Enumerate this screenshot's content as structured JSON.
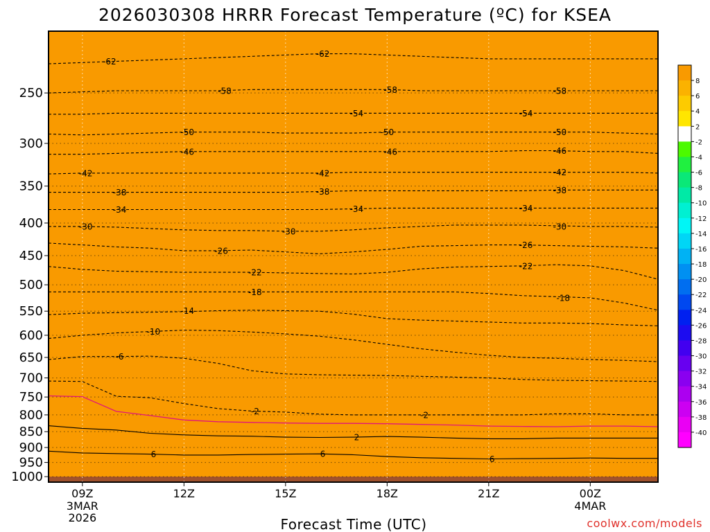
{
  "chart_data": {
    "type": "heatmap",
    "title": "2026030308 HRRR Forecast Temperature (ºC) for KSEA",
    "xlabel": "Forecast Time (UTC)",
    "credit": "coolwx.com/models",
    "x_ticks": [
      {
        "hour": 9,
        "label": "09Z",
        "sublabel": [
          "3MAR",
          "2026"
        ]
      },
      {
        "hour": 12,
        "label": "12Z",
        "sublabel": []
      },
      {
        "hour": 15,
        "label": "15Z",
        "sublabel": []
      },
      {
        "hour": 18,
        "label": "18Z",
        "sublabel": []
      },
      {
        "hour": 21,
        "label": "21Z",
        "sublabel": []
      },
      {
        "hour": 24,
        "label": "00Z",
        "sublabel": [
          "4MAR"
        ]
      }
    ],
    "xlim": [
      8,
      26
    ],
    "ylim": [
      1020,
      200
    ],
    "y_scale": "log",
    "y_ticks": [
      250,
      300,
      350,
      400,
      450,
      500,
      550,
      600,
      650,
      700,
      750,
      800,
      850,
      900,
      950,
      1000
    ],
    "x_hours": [
      8,
      9,
      10,
      11,
      12,
      13,
      14,
      15,
      16,
      17,
      18,
      19,
      20,
      21,
      22,
      23,
      24,
      25,
      26
    ],
    "isotherm_pressures": [
      {
        "t": -62,
        "p": [
          225,
          224,
          223,
          222,
          221,
          220,
          219,
          218,
          217,
          217,
          218,
          219,
          220,
          221,
          221,
          221,
          221,
          221,
          221
        ]
      },
      {
        "t": -58,
        "p": [
          250,
          249,
          248,
          248,
          248,
          248,
          247,
          247,
          247,
          247,
          247,
          248,
          248,
          248,
          248,
          248,
          248,
          248,
          248
        ]
      },
      {
        "t": -54,
        "p": [
          270,
          270,
          269,
          269,
          269,
          269,
          269,
          269,
          269,
          269,
          269,
          269,
          269,
          269,
          269,
          269,
          269,
          269,
          269
        ]
      },
      {
        "t": -50,
        "p": [
          290,
          291,
          290,
          289,
          288,
          288,
          288,
          289,
          289,
          289,
          288,
          288,
          288,
          288,
          288,
          288,
          288,
          289,
          290
        ]
      },
      {
        "t": -46,
        "p": [
          312,
          312,
          311,
          310,
          309,
          309,
          309,
          309,
          309,
          309,
          309,
          309,
          309,
          309,
          308,
          308,
          309,
          309,
          311
        ]
      },
      {
        "t": -42,
        "p": [
          335,
          334,
          334,
          334,
          334,
          334,
          334,
          334,
          334,
          333,
          333,
          333,
          333,
          333,
          333,
          333,
          333,
          333,
          334
        ]
      },
      {
        "t": -38,
        "p": [
          358,
          358,
          358,
          358,
          358,
          358,
          358,
          358,
          357,
          356,
          356,
          356,
          356,
          356,
          356,
          355,
          355,
          355,
          355
        ]
      },
      {
        "t": -34,
        "p": [
          381,
          381,
          381,
          381,
          381,
          381,
          381,
          381,
          381,
          380,
          379,
          379,
          379,
          379,
          379,
          379,
          379,
          379,
          379
        ]
      },
      {
        "t": -30,
        "p": [
          405,
          405,
          406,
          408,
          410,
          411,
          411,
          412,
          412,
          410,
          407,
          405,
          403,
          403,
          403,
          404,
          405,
          405,
          406
        ]
      },
      {
        "t": -26,
        "p": [
          430,
          433,
          436,
          438,
          442,
          442,
          441,
          444,
          447,
          444,
          440,
          435,
          434,
          433,
          433,
          434,
          435,
          436,
          438
        ]
      },
      {
        "t": -22,
        "p": [
          468,
          473,
          476,
          477,
          478,
          478,
          478,
          479,
          480,
          481,
          478,
          472,
          469,
          468,
          467,
          465,
          467,
          475,
          490
        ]
      },
      {
        "t": -18,
        "p": [
          513,
          513,
          513,
          513,
          513,
          513,
          513,
          513,
          513,
          513,
          513,
          513,
          513,
          516,
          520,
          522,
          524,
          534,
          548
        ]
      },
      {
        "t": -14,
        "p": [
          557,
          554,
          553,
          552,
          551,
          549,
          548,
          549,
          550,
          556,
          565,
          568,
          570,
          572,
          574,
          574,
          575,
          578,
          580
        ]
      },
      {
        "t": -10,
        "p": [
          607,
          600,
          595,
          592,
          589,
          590,
          593,
          597,
          602,
          610,
          620,
          630,
          638,
          645,
          650,
          652,
          655,
          657,
          660
        ]
      },
      {
        "t": -6,
        "p": [
          655,
          648,
          648,
          647,
          652,
          664,
          682,
          690,
          692,
          693,
          694,
          696,
          698,
          700,
          704,
          706,
          707,
          708,
          709
        ]
      },
      {
        "t": -2,
        "p": [
          708,
          709,
          748,
          752,
          768,
          782,
          789,
          792,
          798,
          800,
          800,
          800,
          800,
          800,
          800,
          797,
          797,
          800,
          800
        ]
      },
      {
        "t": 2,
        "p": [
          832,
          840,
          845,
          855,
          860,
          863,
          864,
          867,
          868,
          867,
          865,
          867,
          870,
          872,
          872,
          870,
          870,
          870,
          870
        ]
      },
      {
        "t": 6,
        "p": [
          912,
          918,
          920,
          922,
          925,
          925,
          923,
          922,
          921,
          924,
          930,
          934,
          936,
          938,
          937,
          936,
          935,
          936,
          936
        ]
      },
      {
        "t": 10,
        "p": [
          1000,
          1000,
          1000,
          1000,
          1000,
          1000,
          1000,
          1000,
          1000,
          1000,
          1000,
          1000,
          1000,
          1000,
          1000,
          1000,
          1000,
          1000,
          1000
        ]
      }
    ],
    "zero_line_p": [
      747,
      749,
      790,
      802,
      815,
      820,
      822,
      824,
      825,
      825,
      826,
      828,
      830,
      833,
      834,
      835,
      833,
      833,
      835
    ],
    "surface_pressure": 1000,
    "contour_labels": [
      {
        "text": "-62",
        "x": 9.8,
        "p": 223
      },
      {
        "text": "-62",
        "x": 16.1,
        "p": 217
      },
      {
        "text": "-58",
        "x": 13.2,
        "p": 248
      },
      {
        "text": "-58",
        "x": 18.1,
        "p": 247
      },
      {
        "text": "-58",
        "x": 23.1,
        "p": 248
      },
      {
        "text": "-54",
        "x": 17.1,
        "p": 269
      },
      {
        "text": "-54",
        "x": 22.1,
        "p": 269
      },
      {
        "text": "-50",
        "x": 12.1,
        "p": 288
      },
      {
        "text": "-50",
        "x": 18.0,
        "p": 288
      },
      {
        "text": "-50",
        "x": 23.1,
        "p": 288
      },
      {
        "text": "-46",
        "x": 12.1,
        "p": 309
      },
      {
        "text": "-46",
        "x": 18.1,
        "p": 309
      },
      {
        "text": "-46",
        "x": 23.1,
        "p": 308
      },
      {
        "text": "-42",
        "x": 9.1,
        "p": 334
      },
      {
        "text": "-42",
        "x": 16.1,
        "p": 334
      },
      {
        "text": "-42",
        "x": 23.1,
        "p": 333
      },
      {
        "text": "-38",
        "x": 10.1,
        "p": 358
      },
      {
        "text": "-38",
        "x": 16.1,
        "p": 357
      },
      {
        "text": "-38",
        "x": 23.1,
        "p": 355
      },
      {
        "text": "-34",
        "x": 10.1,
        "p": 381
      },
      {
        "text": "-34",
        "x": 17.1,
        "p": 380
      },
      {
        "text": "-34",
        "x": 22.1,
        "p": 379
      },
      {
        "text": "-30",
        "x": 9.1,
        "p": 405
      },
      {
        "text": "-30",
        "x": 15.1,
        "p": 412
      },
      {
        "text": "-30",
        "x": 23.1,
        "p": 405
      },
      {
        "text": "-26",
        "x": 13.1,
        "p": 442
      },
      {
        "text": "-26",
        "x": 22.1,
        "p": 433
      },
      {
        "text": "-22",
        "x": 14.1,
        "p": 478
      },
      {
        "text": "-22",
        "x": 22.1,
        "p": 467
      },
      {
        "text": "-18",
        "x": 14.1,
        "p": 513
      },
      {
        "text": "-18",
        "x": 23.2,
        "p": 524
      },
      {
        "text": "-14",
        "x": 12.1,
        "p": 549
      },
      {
        "text": "-10",
        "x": 11.1,
        "p": 592
      },
      {
        "text": "-6",
        "x": 10.1,
        "p": 648
      },
      {
        "text": "-2",
        "x": 14.1,
        "p": 789
      },
      {
        "text": "-2",
        "x": 19.1,
        "p": 800
      },
      {
        "text": "2",
        "x": 17.1,
        "p": 867
      },
      {
        "text": "6",
        "x": 11.1,
        "p": 922
      },
      {
        "text": "6",
        "x": 16.1,
        "p": 921
      },
      {
        "text": "6",
        "x": 21.1,
        "p": 938
      }
    ],
    "colorbar": {
      "bands": [
        {
          "lo": 8,
          "hi": 10,
          "color": "#f99a00"
        },
        {
          "lo": 6,
          "hi": 8,
          "color": "#fbb200"
        },
        {
          "lo": 4,
          "hi": 6,
          "color": "#fdcb00"
        },
        {
          "lo": 2,
          "hi": 4,
          "color": "#ffe600"
        },
        {
          "lo": -2,
          "hi": 2,
          "color": "#ffffff"
        },
        {
          "lo": -4,
          "hi": -2,
          "color": "#4cfa00"
        },
        {
          "lo": -6,
          "hi": -4,
          "color": "#20f040"
        },
        {
          "lo": -8,
          "hi": -6,
          "color": "#0ae878"
        },
        {
          "lo": -10,
          "hi": -8,
          "color": "#00eaa6"
        },
        {
          "lo": -12,
          "hi": -10,
          "color": "#00f0d2"
        },
        {
          "lo": -14,
          "hi": -12,
          "color": "#00f6f6"
        },
        {
          "lo": -16,
          "hi": -14,
          "color": "#00d6f6"
        },
        {
          "lo": -18,
          "hi": -16,
          "color": "#00b2f4"
        },
        {
          "lo": -20,
          "hi": -18,
          "color": "#0090f2"
        },
        {
          "lo": -22,
          "hi": -20,
          "color": "#006ef0"
        },
        {
          "lo": -24,
          "hi": -22,
          "color": "#0048f0"
        },
        {
          "lo": -26,
          "hi": -24,
          "color": "#0020f0"
        },
        {
          "lo": -28,
          "hi": -26,
          "color": "#1c0cf0"
        },
        {
          "lo": -30,
          "hi": -28,
          "color": "#4200f0"
        },
        {
          "lo": -32,
          "hi": -30,
          "color": "#6800f0"
        },
        {
          "lo": -34,
          "hi": -32,
          "color": "#8a00f0"
        },
        {
          "lo": -36,
          "hi": -34,
          "color": "#ac00f0"
        },
        {
          "lo": -38,
          "hi": -36,
          "color": "#cc00f2"
        },
        {
          "lo": -40,
          "hi": -38,
          "color": "#ea00f4"
        },
        {
          "lo": -66,
          "hi": -40,
          "color": "#ff00ff"
        }
      ],
      "tick_labels": [
        "8",
        "6",
        "4",
        "2",
        "-2",
        "-4",
        "-6",
        "-8",
        "-10",
        "-12",
        "-14",
        "-16",
        "-18",
        "-20",
        "-22",
        "-24",
        "-26",
        "-28",
        "-30",
        "-32",
        "-34",
        "-36",
        "-38",
        "-40"
      ],
      "ground_color": "#a0522d",
      "contour_color": "#000000",
      "zero_line_color": "#e0157a"
    }
  }
}
